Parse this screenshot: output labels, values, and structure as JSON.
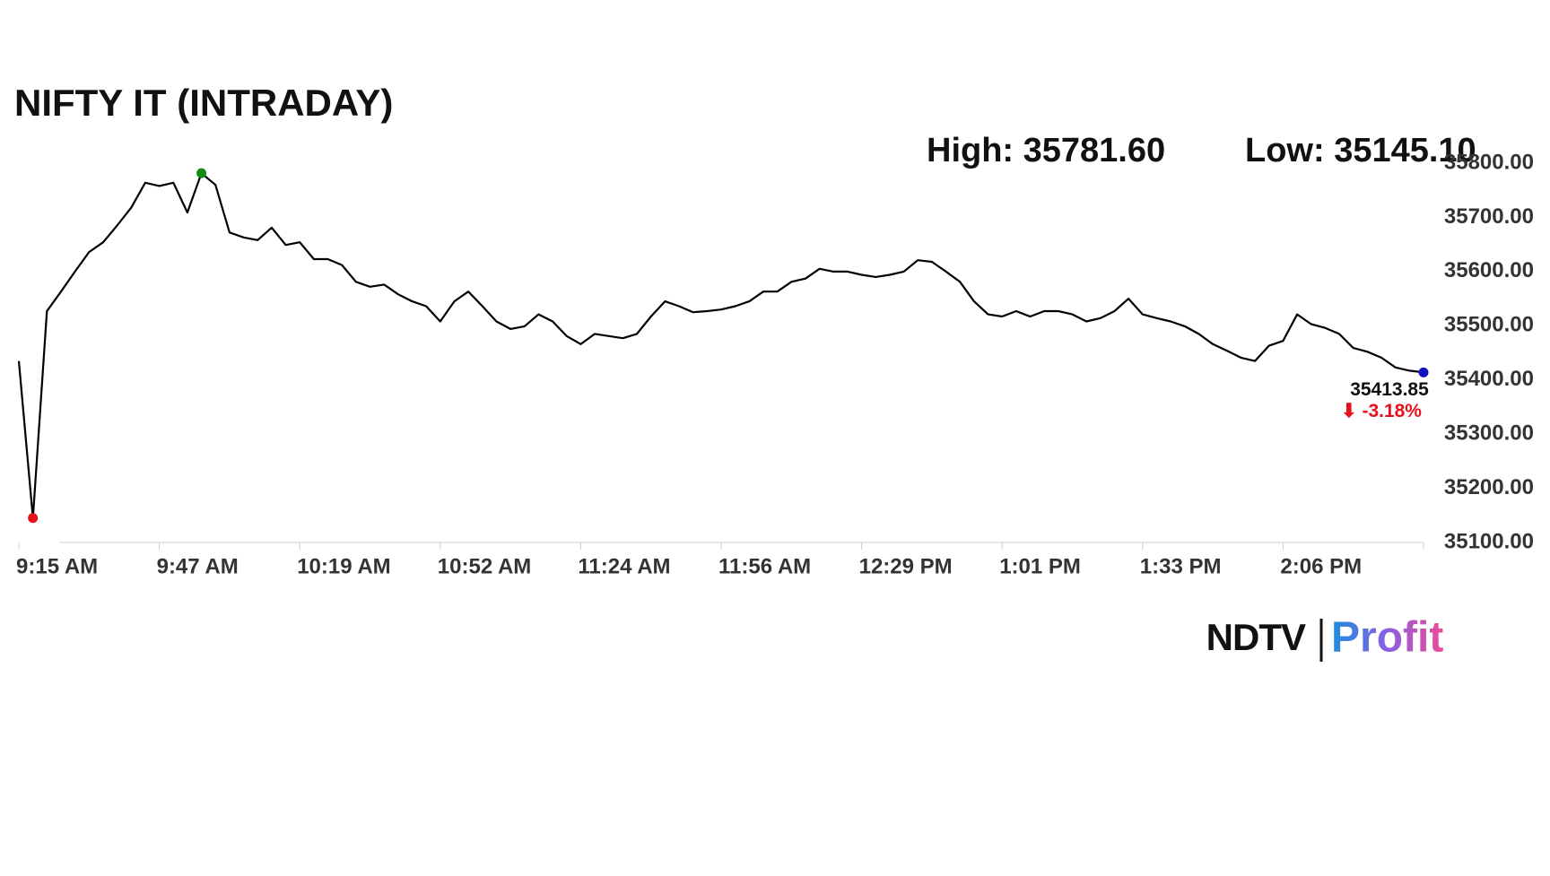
{
  "chart_data": {
    "type": "line",
    "title": "NIFTY IT (INTRADAY)",
    "high_label": "High: 35781.60",
    "low_label": "Low: 35145.10",
    "last_label": "35413.85",
    "change_label": "⬇ -3.18%",
    "color": "#000000",
    "high_color": "#138a13",
    "low_color": "#e8101a",
    "last_color": "#1010c0",
    "change_color": "#e8101a",
    "categories": [
      "9:15 AM",
      null,
      null,
      null,
      null,
      null,
      null,
      null,
      null,
      null,
      "9:47 AM",
      null,
      null,
      null,
      null,
      null,
      null,
      null,
      null,
      null,
      "10:19 AM",
      null,
      null,
      null,
      null,
      null,
      null,
      null,
      null,
      null,
      "10:52 AM",
      null,
      null,
      null,
      null,
      null,
      null,
      null,
      null,
      null,
      "11:24 AM",
      null,
      null,
      null,
      null,
      null,
      null,
      null,
      null,
      null,
      "11:56 AM",
      null,
      null,
      null,
      null,
      null,
      null,
      null,
      null,
      null,
      "12:29 PM",
      null,
      null,
      null,
      null,
      null,
      null,
      null,
      null,
      null,
      "1:01 PM",
      null,
      null,
      null,
      null,
      null,
      null,
      null,
      null,
      null,
      "1:33 PM",
      null,
      null,
      null,
      null,
      null,
      null,
      null,
      null,
      null,
      "2:06 PM",
      null,
      null,
      null,
      null,
      null,
      null,
      null,
      null,
      null,
      null
    ],
    "values": [
      35435,
      35145.1,
      35527,
      35563,
      35600,
      35636,
      35654,
      35685,
      35718,
      35764,
      35758,
      35764,
      35709,
      35781.6,
      35760,
      35672,
      35663,
      35658,
      35681,
      35649,
      35654,
      35623,
      35623,
      35612,
      35581,
      35572,
      35576,
      35558,
      35545,
      35536,
      35508,
      35545,
      35563,
      35536,
      35508,
      35494,
      35499,
      35521,
      35508,
      35481,
      35466,
      35485,
      35481,
      35477,
      35485,
      35517,
      35545,
      35536,
      35525,
      35527,
      35530,
      35536,
      35545,
      35563,
      35563,
      35581,
      35587,
      35605,
      35600,
      35600,
      35594,
      35590,
      35594,
      35600,
      35621,
      35618,
      35600,
      35581,
      35545,
      35521,
      35517,
      35527,
      35517,
      35527,
      35527,
      35521,
      35508,
      35514,
      35527,
      35550,
      35521,
      35514,
      35508,
      35499,
      35485,
      35466,
      35454,
      35441,
      35435,
      35463,
      35472,
      35521,
      35503,
      35496,
      35485,
      35459,
      35452,
      35441,
      35423,
      35417,
      35413.85
    ],
    "ylim": [
      35100,
      35800
    ],
    "yticks": [
      {
        "value": 35100,
        "label": "35100.00"
      },
      {
        "value": 35200,
        "label": "35200.00"
      },
      {
        "value": 35300,
        "label": "35300.00"
      },
      {
        "value": 35400,
        "label": "35400.00"
      },
      {
        "value": 35500,
        "label": "35500.00"
      },
      {
        "value": 35600,
        "label": "35600.00"
      },
      {
        "value": 35700,
        "label": "35700.00"
      },
      {
        "value": 35800,
        "label": "35800.00"
      }
    ],
    "grid": false
  },
  "logo": {
    "left": "NDTV",
    "right": "Profit"
  }
}
